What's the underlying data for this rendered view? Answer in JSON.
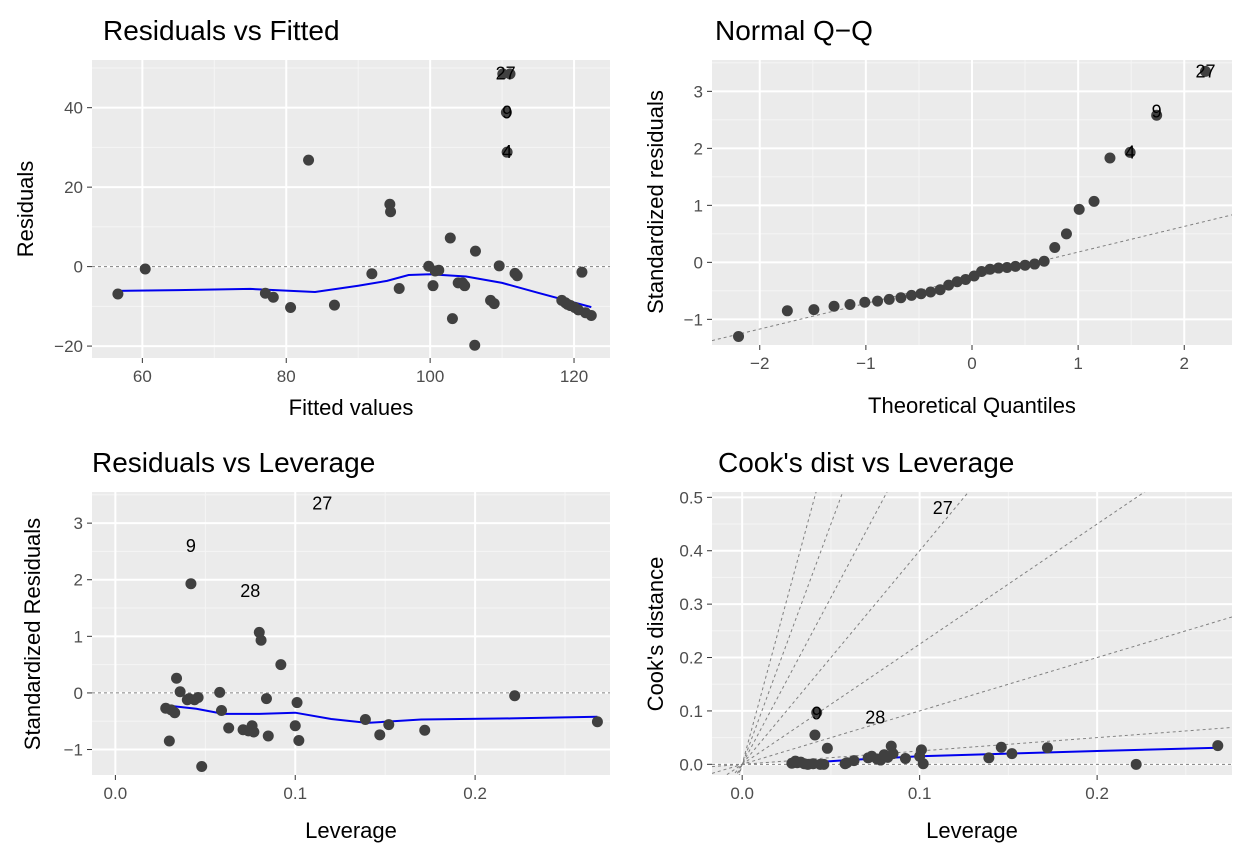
{
  "colors": {
    "panel_bg": "#ebebeb",
    "grid_major": "#ffffff",
    "grid_minor": "#f5f5f5",
    "point": "#404040",
    "smooth": "#0000ee",
    "reference": "#808080",
    "tick_text": "#4d4d4d"
  },
  "chart_data": [
    {
      "type": "scatter",
      "title": "Residuals vs Fitted",
      "xlabel": "Fitted values",
      "ylabel": "Residuals",
      "xlim": [
        53,
        125
      ],
      "ylim": [
        -23,
        52
      ],
      "xticks": [
        60,
        80,
        100,
        120
      ],
      "yticks": [
        -20,
        0,
        20,
        40
      ],
      "xtick_labels": [
        "60",
        "80",
        "100",
        "120"
      ],
      "ytick_labels": [
        "−20",
        "0",
        "20",
        "40"
      ],
      "grid": true,
      "reference_lines": [
        {
          "kind": "hline",
          "y": 0
        }
      ],
      "points": {
        "x": [
          56.6,
          60.4,
          77.1,
          78.2,
          80.6,
          83.1,
          86.7,
          91.9,
          94.4,
          94.5,
          95.7,
          99.8,
          100.4,
          100.7,
          101.2,
          102.8,
          103.1,
          103.9,
          104.5,
          104.8,
          106.2,
          106.3,
          108.4,
          108.9,
          109.6,
          110.1,
          110.6,
          110.7,
          111.1,
          111.8,
          112.1,
          118.3,
          118.8,
          119.1,
          119.5,
          120.1,
          120.6,
          121.1,
          121.6,
          122.4
        ],
        "y": [
          -6.9,
          -0.6,
          -6.7,
          -7.7,
          -10.3,
          26.8,
          -9.7,
          -1.8,
          15.7,
          13.8,
          -5.5,
          0.1,
          -4.8,
          -1.1,
          -0.9,
          7.2,
          -13.1,
          -4.1,
          -4.1,
          -4.8,
          -19.8,
          3.9,
          -8.5,
          -9.3,
          0.2,
          48.5,
          38.8,
          28.8,
          48.5,
          -1.7,
          -2.3,
          -8.5,
          -9.1,
          -9.5,
          -9.8,
          -10.3,
          -10.9,
          -1.4,
          -11.6,
          -12.3
        ]
      },
      "labels": [
        {
          "text": "27",
          "x": 110.5,
          "y": 48.6
        },
        {
          "text": "9",
          "x": 110.7,
          "y": 38.8
        },
        {
          "text": "4",
          "x": 110.7,
          "y": 28.8
        }
      ],
      "smooth": {
        "x": [
          56.6,
          65,
          75,
          84,
          90,
          94,
          97,
          100,
          105,
          110,
          115,
          122.4
        ],
        "y": [
          -6.1,
          -5.9,
          -5.6,
          -6.4,
          -4.8,
          -3.6,
          -2.1,
          -1.9,
          -2.5,
          -4.1,
          -6.6,
          -10.2
        ]
      }
    },
    {
      "type": "scatter",
      "title": "Normal Q−Q",
      "xlabel": "Theoretical Quantiles",
      "ylabel": "Standardized residuals",
      "xlim": [
        -2.45,
        2.45
      ],
      "ylim": [
        -1.45,
        3.55
      ],
      "xticks": [
        -2,
        -1,
        0,
        1,
        2
      ],
      "yticks": [
        -1,
        0,
        1,
        2,
        3
      ],
      "xtick_labels": [
        "−2",
        "−1",
        "0",
        "1",
        "2"
      ],
      "ytick_labels": [
        "−1",
        "0",
        "1",
        "2",
        "3"
      ],
      "grid": true,
      "reference_lines": [
        {
          "kind": "abline",
          "intercept": -0.27,
          "slope": 0.45
        }
      ],
      "points": {
        "x": [
          -2.2,
          -1.74,
          -1.49,
          -1.3,
          -1.15,
          -1.01,
          -0.89,
          -0.78,
          -0.67,
          -0.57,
          -0.48,
          -0.39,
          -0.3,
          -0.22,
          -0.14,
          -0.06,
          0.02,
          0.09,
          0.17,
          0.25,
          0.33,
          0.41,
          0.5,
          0.59,
          0.68,
          0.78,
          0.89,
          1.01,
          1.15,
          1.3,
          1.49,
          1.74,
          2.2
        ],
        "y": [
          -1.3,
          -0.85,
          -0.83,
          -0.77,
          -0.74,
          -0.7,
          -0.68,
          -0.65,
          -0.62,
          -0.58,
          -0.55,
          -0.52,
          -0.48,
          -0.4,
          -0.34,
          -0.3,
          -0.24,
          -0.16,
          -0.12,
          -0.1,
          -0.09,
          -0.07,
          -0.05,
          -0.03,
          0.02,
          0.26,
          0.5,
          0.93,
          1.07,
          1.83,
          1.93,
          2.58,
          3.35
        ]
      },
      "labels": [
        {
          "text": "27",
          "x": 2.2,
          "y": 3.35
        },
        {
          "text": "9",
          "x": 1.74,
          "y": 2.65
        },
        {
          "text": "4",
          "x": 1.49,
          "y": 1.93
        }
      ]
    },
    {
      "type": "scatter",
      "title": "Residuals vs Leverage",
      "xlabel": "Leverage",
      "ylabel": "Standardized Residuals",
      "xlim": [
        -0.013,
        0.275
      ],
      "ylim": [
        -1.45,
        3.55
      ],
      "xticks": [
        0.0,
        0.1,
        0.2
      ],
      "yticks": [
        -1,
        0,
        1,
        2,
        3
      ],
      "xtick_labels": [
        "0.0",
        "0.1",
        "0.2"
      ],
      "ytick_labels": [
        "−1",
        "0",
        "1",
        "2",
        "3"
      ],
      "grid": true,
      "reference_lines": [
        {
          "kind": "hline",
          "y": 0
        }
      ],
      "points": {
        "x": [
          0.028,
          0.03,
          0.031,
          0.033,
          0.034,
          0.036,
          0.04,
          0.041,
          0.042,
          0.044,
          0.046,
          0.048,
          0.058,
          0.059,
          0.063,
          0.071,
          0.074,
          0.076,
          0.077,
          0.08,
          0.081,
          0.084,
          0.085,
          0.092,
          0.1,
          0.101,
          0.102,
          0.139,
          0.147,
          0.152,
          0.172,
          0.222,
          0.268
        ],
        "y": [
          -0.27,
          -0.85,
          -0.3,
          -0.35,
          0.26,
          0.02,
          -0.12,
          -0.1,
          1.93,
          -0.12,
          -0.08,
          -1.3,
          0.01,
          -0.31,
          -0.62,
          -0.65,
          -0.67,
          -0.58,
          -0.69,
          1.07,
          0.93,
          -0.1,
          -0.76,
          0.5,
          -0.58,
          -0.17,
          -0.84,
          -0.47,
          -0.74,
          -0.56,
          -0.66,
          -0.05,
          -0.51
        ]
      },
      "labels": [
        {
          "text": "27",
          "x": 0.115,
          "y": 3.35
        },
        {
          "text": "9",
          "x": 0.042,
          "y": 2.6
        },
        {
          "text": "28",
          "x": 0.075,
          "y": 1.8
        }
      ],
      "smooth": {
        "x": [
          0.028,
          0.045,
          0.06,
          0.08,
          0.1,
          0.12,
          0.14,
          0.17,
          0.22,
          0.268
        ],
        "y": [
          -0.22,
          -0.28,
          -0.37,
          -0.37,
          -0.35,
          -0.46,
          -0.53,
          -0.47,
          -0.45,
          -0.42
        ]
      }
    },
    {
      "type": "scatter",
      "title": "Cook's dist vs Leverage",
      "xlabel": "Leverage",
      "ylabel": "Cook's distance",
      "xlim": [
        -0.017,
        0.276
      ],
      "ylim": [
        -0.02,
        0.51
      ],
      "xticks": [
        0.0,
        0.1,
        0.2
      ],
      "yticks": [
        0.0,
        0.1,
        0.2,
        0.3,
        0.4,
        0.5
      ],
      "xtick_labels": [
        "0.0",
        "0.1",
        "0.2"
      ],
      "ytick_labels": [
        "0.0",
        "0.1",
        "0.2",
        "0.3",
        "0.4",
        "0.5"
      ],
      "grid": true,
      "reference_lines": [
        {
          "kind": "hline",
          "y": 0
        },
        {
          "kind": "ray",
          "slope": 0.25
        },
        {
          "kind": "ray",
          "slope": 1.0
        },
        {
          "kind": "ray",
          "slope": 2.25
        },
        {
          "kind": "ray",
          "slope": 4.0
        },
        {
          "kind": "ray",
          "slope": 6.25
        },
        {
          "kind": "ray",
          "slope": 9.0
        },
        {
          "kind": "ray",
          "slope": 12.25
        }
      ],
      "points": {
        "x": [
          0.028,
          0.03,
          0.031,
          0.033,
          0.035,
          0.037,
          0.04,
          0.041,
          0.042,
          0.044,
          0.046,
          0.048,
          0.058,
          0.059,
          0.063,
          0.071,
          0.073,
          0.076,
          0.078,
          0.08,
          0.082,
          0.084,
          0.085,
          0.092,
          0.1,
          0.101,
          0.102,
          0.139,
          0.146,
          0.152,
          0.172,
          0.222,
          0.268
        ],
        "y": [
          0.002,
          0.006,
          0.003,
          0.004,
          0.001,
          0.0,
          0.001,
          0.055,
          0.097,
          0.0,
          0.0,
          0.03,
          0.001,
          0.003,
          0.007,
          0.012,
          0.015,
          0.01,
          0.008,
          0.018,
          0.013,
          0.034,
          0.02,
          0.011,
          0.015,
          0.027,
          0.001,
          0.012,
          0.032,
          0.02,
          0.031,
          0.0,
          0.035
        ]
      },
      "labels": [
        {
          "text": "27",
          "x": 0.113,
          "y": 0.48
        },
        {
          "text": "9",
          "x": 0.042,
          "y": 0.095
        },
        {
          "text": "28",
          "x": 0.075,
          "y": 0.088
        }
      ],
      "smooth": {
        "x": [
          0.028,
          0.06,
          0.1,
          0.15,
          0.2,
          0.268
        ],
        "y": [
          0.001,
          0.008,
          0.015,
          0.02,
          0.025,
          0.031
        ]
      }
    }
  ]
}
